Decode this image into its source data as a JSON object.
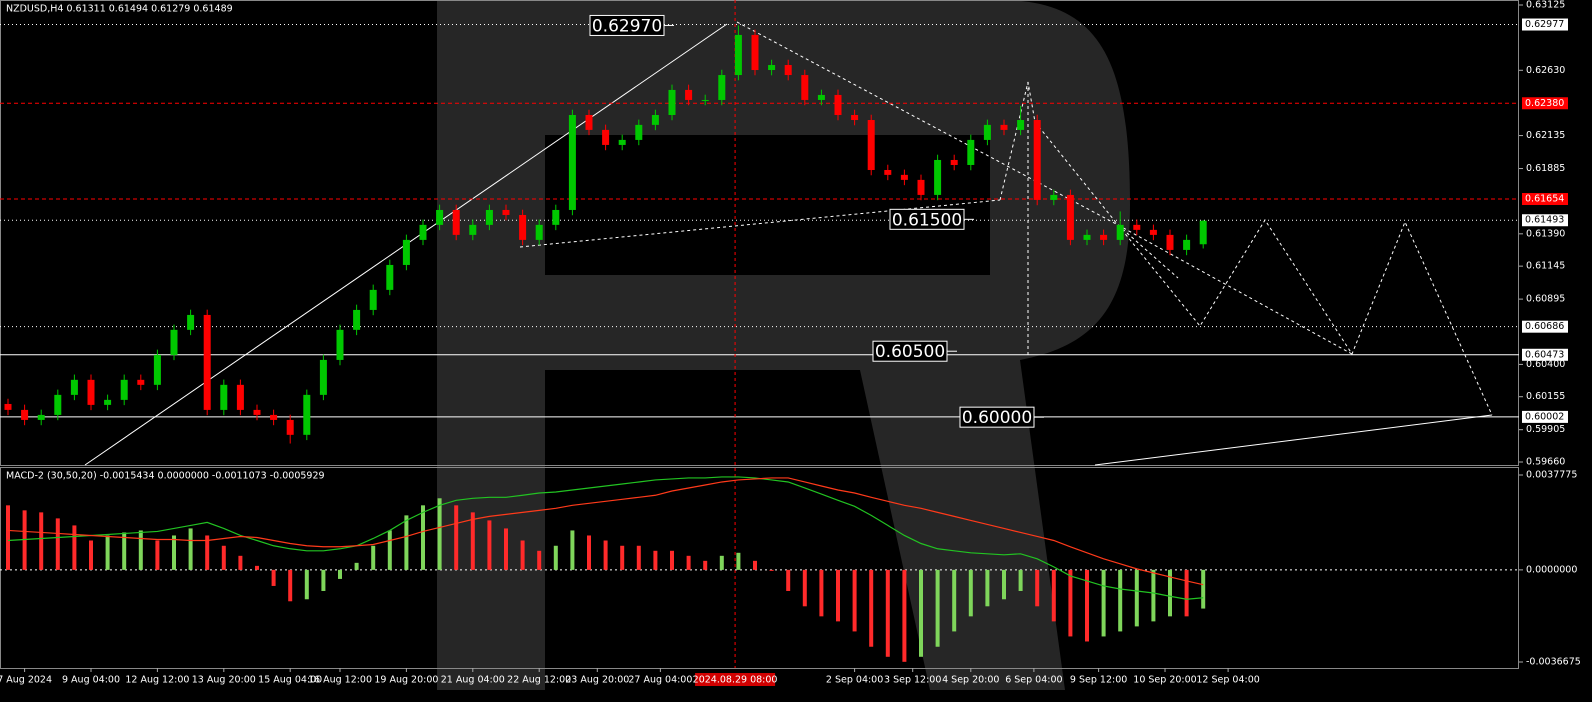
{
  "chart_data": [
    {
      "type": "candlestick",
      "title": "NZDUSD,H4  0.61311 0.61494 0.61279 0.61489",
      "up_color": "#00c800",
      "down_color": "#ff0000",
      "open": [
        0.601,
        0.60055,
        0.59979,
        0.60017,
        0.60169,
        0.60283,
        0.60093,
        0.60131,
        0.60283,
        0.60245,
        0.60472,
        0.60662,
        0.60775,
        0.60055,
        0.60245,
        0.60055,
        0.60017,
        0.59979,
        0.59866,
        0.60169,
        0.60434,
        0.60662,
        0.60813,
        0.60965,
        0.61154,
        0.61344,
        0.61458,
        0.61571,
        0.61382,
        0.61458,
        0.61571,
        0.61533,
        0.61344,
        0.61458,
        0.61571,
        0.62291,
        0.62178,
        0.62064,
        0.62102,
        0.62216,
        0.62291,
        0.62481,
        0.62405,
        0.62405,
        0.62594,
        0.62898,
        0.62632,
        0.6267,
        0.62594,
        0.62405,
        0.62443,
        0.62291,
        0.62253,
        0.61874,
        0.61837,
        0.61799,
        0.61685,
        0.6195,
        0.61912,
        0.62102,
        0.62216,
        0.62178,
        0.62253,
        0.61647,
        0.61685,
        0.61344,
        0.61382,
        0.61344,
        0.61458,
        0.6142,
        0.61382,
        0.61268,
        0.61311
      ],
      "high": [
        0.6014,
        0.60095,
        0.60057,
        0.60209,
        0.60323,
        0.60323,
        0.60171,
        0.60323,
        0.60323,
        0.60512,
        0.60702,
        0.60815,
        0.60815,
        0.60285,
        0.60285,
        0.60095,
        0.60057,
        0.60019,
        0.60209,
        0.60474,
        0.60702,
        0.60853,
        0.61005,
        0.61194,
        0.61384,
        0.61498,
        0.61611,
        0.61611,
        0.61498,
        0.61611,
        0.61611,
        0.61573,
        0.61498,
        0.61611,
        0.62331,
        0.62331,
        0.62218,
        0.62142,
        0.62256,
        0.62331,
        0.62521,
        0.62521,
        0.62445,
        0.62634,
        0.6297,
        0.62938,
        0.6271,
        0.6271,
        0.62634,
        0.62483,
        0.62483,
        0.62331,
        0.62293,
        0.61914,
        0.61877,
        0.61839,
        0.6199,
        0.6199,
        0.62142,
        0.62256,
        0.62256,
        0.6236,
        0.62293,
        0.61725,
        0.61725,
        0.61422,
        0.61422,
        0.6156,
        0.61498,
        0.6146,
        0.61422,
        0.61384,
        0.61494
      ],
      "low": [
        0.60015,
        0.59939,
        0.59939,
        0.59977,
        0.60129,
        0.60053,
        0.60053,
        0.60091,
        0.60205,
        0.60205,
        0.60432,
        0.60622,
        0.60015,
        0.60015,
        0.60015,
        0.59977,
        0.59939,
        0.598,
        0.59826,
        0.60129,
        0.60394,
        0.60622,
        0.60773,
        0.60925,
        0.61114,
        0.61304,
        0.61418,
        0.61342,
        0.61342,
        0.61418,
        0.61493,
        0.61304,
        0.61304,
        0.61418,
        0.61531,
        0.62138,
        0.62024,
        0.62024,
        0.62062,
        0.62176,
        0.62251,
        0.62365,
        0.62365,
        0.62365,
        0.62554,
        0.62592,
        0.62592,
        0.62554,
        0.62365,
        0.62365,
        0.62251,
        0.62213,
        0.61834,
        0.61797,
        0.61759,
        0.61645,
        0.61645,
        0.61872,
        0.61872,
        0.62062,
        0.62138,
        0.62138,
        0.61607,
        0.61607,
        0.61304,
        0.61304,
        0.61304,
        0.61304,
        0.6138,
        0.61342,
        0.61228,
        0.61228,
        0.61279
      ],
      "close": [
        0.60055,
        0.59979,
        0.60017,
        0.60169,
        0.60283,
        0.60093,
        0.60131,
        0.60283,
        0.60245,
        0.60472,
        0.60662,
        0.60775,
        0.60055,
        0.60245,
        0.60055,
        0.60017,
        0.59979,
        0.59866,
        0.60169,
        0.60434,
        0.60662,
        0.60813,
        0.60965,
        0.61154,
        0.61344,
        0.61458,
        0.61571,
        0.61382,
        0.61458,
        0.61571,
        0.61533,
        0.61344,
        0.61458,
        0.61571,
        0.62291,
        0.62178,
        0.62064,
        0.62102,
        0.62216,
        0.62291,
        0.62481,
        0.62405,
        0.62405,
        0.62594,
        0.62898,
        0.62632,
        0.6267,
        0.62594,
        0.62405,
        0.62443,
        0.62291,
        0.62253,
        0.61874,
        0.61837,
        0.61799,
        0.61685,
        0.6195,
        0.61912,
        0.62102,
        0.62216,
        0.62178,
        0.62253,
        0.61647,
        0.61685,
        0.61344,
        0.61382,
        0.61344,
        0.61458,
        0.6142,
        0.61382,
        0.61268,
        0.61344,
        0.61489
      ],
      "ylim": [
        0.5966,
        0.63125
      ],
      "yticks": [
        {
          "value": 0.63125,
          "label": "0.63125"
        },
        {
          "value": 0.6263,
          "label": "0.62630"
        },
        {
          "value": 0.62135,
          "label": "0.62135"
        },
        {
          "value": 0.61885,
          "label": "0.61885"
        },
        {
          "value": 0.6139,
          "label": "0.61390"
        },
        {
          "value": 0.61145,
          "label": "0.61145"
        },
        {
          "value": 0.60895,
          "label": "0.60895"
        },
        {
          "value": 0.604,
          "label": "0.60400"
        },
        {
          "value": 0.60155,
          "label": "0.60155"
        },
        {
          "value": 0.59905,
          "label": "0.59905"
        },
        {
          "value": 0.5966,
          "label": "0.59660"
        }
      ],
      "levels": [
        {
          "value": 0.62977,
          "label": "0.62977",
          "color": "#ffffff",
          "style": "dotted"
        },
        {
          "value": 0.6238,
          "label": "0.62380",
          "color": "#ff0000",
          "style": "dashed"
        },
        {
          "value": 0.61654,
          "label": "0.61654",
          "color": "#ff0000",
          "style": "dashed"
        },
        {
          "value": 0.61493,
          "label": "0.61493",
          "color": "#ffffff",
          "style": "dotted"
        },
        {
          "value": 0.60686,
          "label": "0.60686",
          "color": "#ffffff",
          "style": "dotted"
        },
        {
          "value": 0.60473,
          "label": "0.60473",
          "color": "#ffffff",
          "style": "solid"
        },
        {
          "value": 0.60002,
          "label": "0.60002",
          "color": "#ffffff",
          "style": "solid"
        }
      ],
      "annotations": [
        {
          "value": 0.6297,
          "label": "0.62970"
        },
        {
          "value": 0.615,
          "label": "0.61500"
        },
        {
          "value": 0.605,
          "label": "0.60500"
        },
        {
          "value": 0.6,
          "label": "0.60000"
        }
      ],
      "xticks": [
        {
          "value": 1,
          "label": "7 Aug 2024"
        },
        {
          "value": 5,
          "label": "9 Aug 04:00"
        },
        {
          "value": 9,
          "label": "12 Aug 12:00"
        },
        {
          "value": 13,
          "label": "13 Aug 20:00"
        },
        {
          "value": 17,
          "label": "15 Aug 04:00"
        },
        {
          "value": 20,
          "label": "16 Aug 12:00"
        },
        {
          "value": 24,
          "label": "19 Aug 20:00"
        },
        {
          "value": 28,
          "label": "21 Aug 04:00"
        },
        {
          "value": 32,
          "label": "22 Aug 12:00"
        },
        {
          "value": 35.5,
          "label": "23 Aug 20:00"
        },
        {
          "value": 39.3,
          "label": "27 Aug 04:00"
        },
        {
          "value": 51,
          "label": "2 Sep 04:00"
        },
        {
          "value": 54.5,
          "label": "3 Sep 12:00"
        },
        {
          "value": 58,
          "label": "4 Sep 20:00"
        },
        {
          "value": 61.8,
          "label": "6 Sep 04:00"
        },
        {
          "value": 65.7,
          "label": "9 Sep 12:00"
        },
        {
          "value": 69.7,
          "label": "10 Sep 20:00"
        },
        {
          "value": 73.5,
          "label": "12 Sep 04:00"
        }
      ],
      "cursor": {
        "value": 43.8,
        "label": "2024.08.29 08:00"
      }
    },
    {
      "type": "macd",
      "title": "MACD-2 (30,50,20) -0.0015434 0.0000000 -0.0011073 -0.0005929",
      "up_color": "#7fd65b",
      "down_color": "#ff2a2a",
      "histogram": [
        0.00257,
        0.00237,
        0.00229,
        0.00205,
        0.00177,
        0.00117,
        0.00137,
        0.00149,
        0.00157,
        0.00117,
        0.00137,
        0.00165,
        0.00137,
        0.00096,
        0.00056,
        0.00016,
        -0.00064,
        -0.00125,
        -0.00117,
        -0.00084,
        -0.00036,
        0.00028,
        0.00096,
        0.00157,
        0.00217,
        0.00257,
        0.00285,
        0.00257,
        0.00229,
        0.00197,
        0.00165,
        0.00117,
        0.00076,
        0.00096,
        0.00157,
        0.00137,
        0.00117,
        0.00096,
        0.00096,
        0.00076,
        0.00076,
        0.00056,
        0.00036,
        0.00056,
        0.00068,
        0.00036,
        -4e-05,
        -0.00084,
        -0.00145,
        -0.00185,
        -0.00205,
        -0.00245,
        -0.00306,
        -0.00346,
        -0.00366,
        -0.00346,
        -0.00306,
        -0.00245,
        -0.00185,
        -0.00145,
        -0.00117,
        -0.00084,
        -0.00145,
        -0.00205,
        -0.00265,
        -0.00285,
        -0.00265,
        -0.00245,
        -0.00225,
        -0.00205,
        -0.00185,
        -0.00185,
        -0.00154
      ],
      "series": [
        {
          "color": "#22c322",
          "values": [
            0.00117,
            0.00121,
            0.00125,
            0.00129,
            0.00133,
            0.00137,
            0.00141,
            0.00145,
            0.00149,
            0.00153,
            0.00165,
            0.00177,
            0.00189,
            0.00165,
            0.00137,
            0.00117,
            0.00096,
            0.00084,
            0.00076,
            0.00076,
            0.00084,
            0.00096,
            0.00125,
            0.00157,
            0.00197,
            0.00229,
            0.00257,
            0.00277,
            0.00285,
            0.00289,
            0.00289,
            0.00297,
            0.00306,
            0.0031,
            0.00318,
            0.00326,
            0.00334,
            0.00342,
            0.0035,
            0.00358,
            0.00362,
            0.00366,
            0.00366,
            0.0037,
            0.0037,
            0.00366,
            0.00358,
            0.0035,
            0.00326,
            0.00302,
            0.00277,
            0.00253,
            0.00217,
            0.00177,
            0.00137,
            0.00105,
            0.00084,
            0.00076,
            0.00068,
            0.00064,
            0.0006,
            0.00064,
            0.00044,
            0.00012,
            -0.00024,
            -0.00044,
            -0.00064,
            -0.00076,
            -0.00084,
            -0.00092,
            -0.00105,
            -0.00117,
            -0.00111
          ]
        },
        {
          "color": "#ff3a1a",
          "values": [
            0.00157,
            0.00153,
            0.00149,
            0.00145,
            0.00141,
            0.00137,
            0.00133,
            0.00129,
            0.00125,
            0.00121,
            0.00121,
            0.00117,
            0.00117,
            0.00125,
            0.00133,
            0.00129,
            0.00117,
            0.00105,
            0.00096,
            0.00092,
            0.00092,
            0.00096,
            0.00101,
            0.00117,
            0.00133,
            0.00153,
            0.00169,
            0.00185,
            0.00201,
            0.00213,
            0.00221,
            0.00229,
            0.00237,
            0.00245,
            0.00257,
            0.00265,
            0.00273,
            0.00281,
            0.00289,
            0.00297,
            0.00314,
            0.00326,
            0.00338,
            0.0035,
            0.00358,
            0.00362,
            0.00366,
            0.00366,
            0.0035,
            0.00334,
            0.00318,
            0.00306,
            0.00289,
            0.00273,
            0.00257,
            0.00245,
            0.00229,
            0.00213,
            0.00197,
            0.00181,
            0.00165,
            0.00149,
            0.00133,
            0.00117,
            0.00092,
            0.00068,
            0.00044,
            0.00024,
            4e-05,
            -0.00012,
            -0.00028,
            -0.00044,
            -0.00059
          ]
        }
      ],
      "ylim": [
        -0.0036675,
        0.0037775
      ],
      "yticks": [
        0.0037775,
        {
          "value": 0,
          "label": "0.0000000"
        },
        -0.0036675
      ],
      "zero_line": true
    }
  ]
}
